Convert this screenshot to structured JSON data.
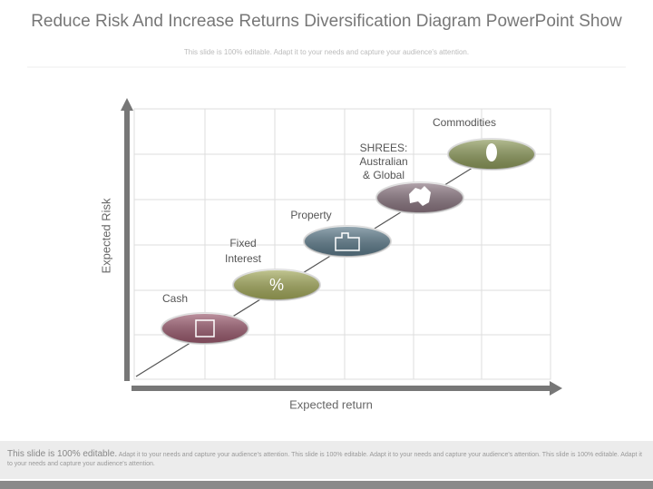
{
  "title": "Reduce Risk And Increase Returns Diversification Diagram PowerPoint Show",
  "subtitle": "This slide is 100% editable. Adapt it to your needs and capture your audience's attention.",
  "y_axis_label": "Expected Risk",
  "x_axis_label": "Expected return",
  "nodes": [
    {
      "label_lines": [
        "Cash"
      ]
    },
    {
      "label_lines": [
        "Fixed",
        "Interest"
      ],
      "symbol": "%"
    },
    {
      "label_lines": [
        "Property"
      ]
    },
    {
      "label_lines": [
        "SHREES:",
        "Australian",
        "& Global"
      ]
    },
    {
      "label_lines": [
        "Commodities"
      ]
    }
  ],
  "footer": {
    "lead": "This slide is 100% editable.",
    "text": "Adapt it to your needs and capture your audience's attention. This slide is 100% editable. Adapt it to your needs and capture your audience's attention. This slide is 100% editable. Adapt it to your needs and capture your audience's attention."
  }
}
